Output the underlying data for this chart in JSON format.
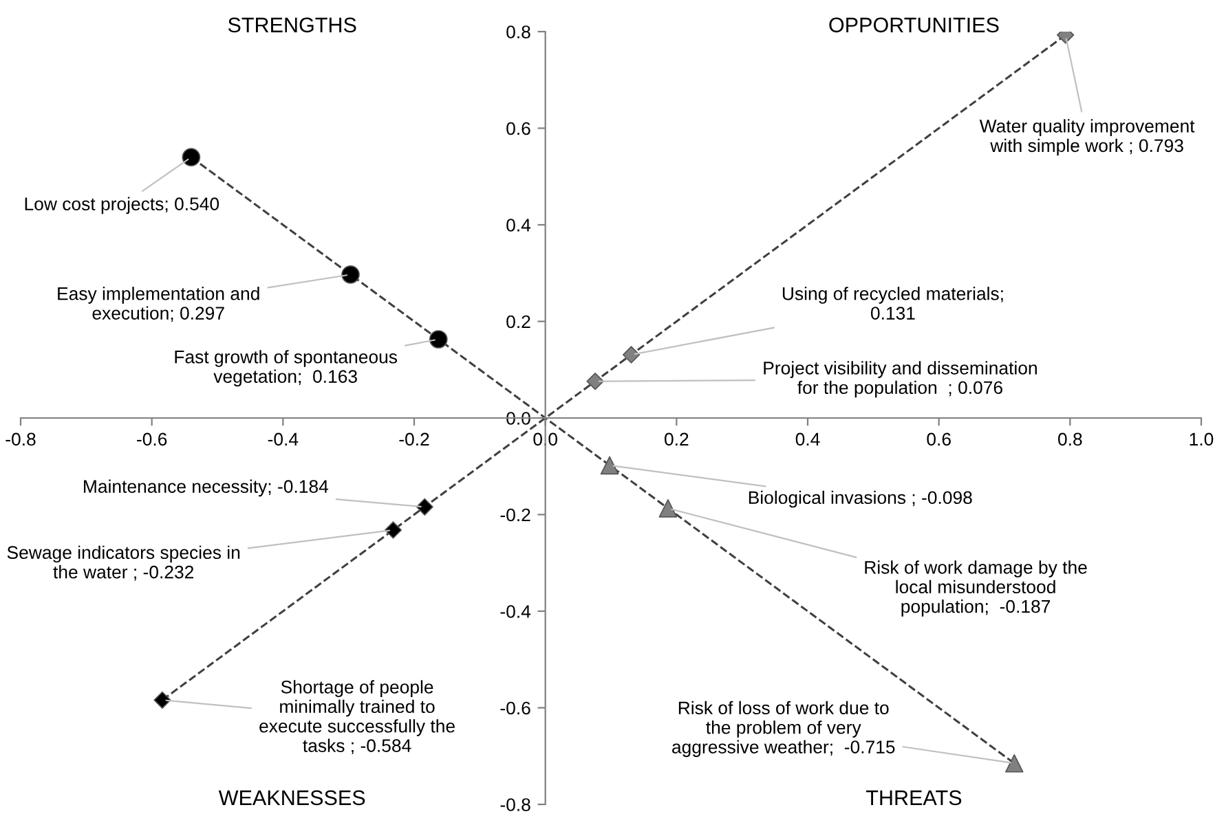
{
  "chart_data": {
    "type": "scatter",
    "xlim": [
      -0.8,
      1.0
    ],
    "ylim": [
      -0.8,
      0.8
    ],
    "xticks": [
      -0.8,
      -0.6,
      -0.4,
      -0.2,
      {
        "value": 0,
        "label": "0.0"
      },
      0.2,
      0.4,
      0.6,
      0.8,
      {
        "value": 1.0,
        "label": "1.0"
      }
    ],
    "yticks": [
      -0.8,
      -0.6,
      -0.4,
      -0.2,
      {
        "value": 0,
        "label": "0.0"
      },
      0.2,
      0.4,
      0.6,
      0.8
    ],
    "grid": false,
    "series": [
      {
        "type": "line",
        "line_style": "dashed",
        "marker": "none",
        "color": "#404040",
        "x": [
          -0.54,
          0,
          0.715
        ],
        "values": [
          0.54,
          0,
          -0.715
        ]
      },
      {
        "type": "line",
        "line_style": "dashed",
        "marker": "none",
        "color": "#404040",
        "x": [
          -0.584,
          0,
          0.793
        ],
        "values": [
          -0.584,
          0,
          0.793
        ]
      },
      {
        "marker": "circle",
        "color": "#000000",
        "x": [
          -0.54,
          -0.297,
          -0.163
        ],
        "values": [
          0.54,
          0.297,
          0.163
        ]
      },
      {
        "marker": "diamond",
        "color": "#000000",
        "x": [
          -0.184,
          -0.232,
          -0.584
        ],
        "values": [
          -0.184,
          -0.232,
          -0.584
        ]
      },
      {
        "marker": "diamond",
        "color": "#808080",
        "x": [
          0.793,
          0.131,
          0.076
        ],
        "values": [
          0.793,
          0.131,
          0.076
        ]
      },
      {
        "marker": "triangle",
        "color": "#808080",
        "x": [
          0.098,
          0.187,
          0.715
        ],
        "values": [
          -0.098,
          -0.187,
          -0.715
        ]
      }
    ],
    "annotations": [
      {
        "text": "Low cost projects; 0.540",
        "x": -0.54,
        "y": 0.54
      },
      {
        "text": "Easy implementation and\nexecution; 0.297",
        "x": -0.297,
        "y": 0.297
      },
      {
        "text": "Fast growth of spontaneous\nvegetation;  0.163",
        "x": -0.163,
        "y": 0.163
      },
      {
        "text": "Maintenance necessity; -0.184",
        "x": -0.184,
        "y": -0.184
      },
      {
        "text": "Sewage indicators species in\nthe water ; -0.232",
        "x": -0.232,
        "y": -0.232
      },
      {
        "text": "Shortage of people\nminimally trained to\nexecute successfully the\ntasks ; -0.584",
        "x": -0.584,
        "y": -0.584
      },
      {
        "text": "Water quality improvement\nwith simple work ; 0.793",
        "x": 0.793,
        "y": 0.793
      },
      {
        "text": "Using of recycled materials;\n0.131",
        "x": 0.131,
        "y": 0.131
      },
      {
        "text": "Project visibility and dissemination\nfor the population  ; 0.076",
        "x": 0.076,
        "y": 0.076
      },
      {
        "text": "Biological invasions ; -0.098",
        "x": 0.098,
        "y": -0.098
      },
      {
        "text": "Risk of work damage by the\nlocal misunderstood\npopulation;  -0.187",
        "x": 0.187,
        "y": -0.187
      },
      {
        "text": "Risk of loss of work due to\nthe problem of very\naggressive weather;  -0.715",
        "x": 0.715,
        "y": -0.715
      },
      "STRENGTHS",
      "OPPORTUNITIES",
      "WEAKNESSES",
      "THREATS"
    ]
  }
}
